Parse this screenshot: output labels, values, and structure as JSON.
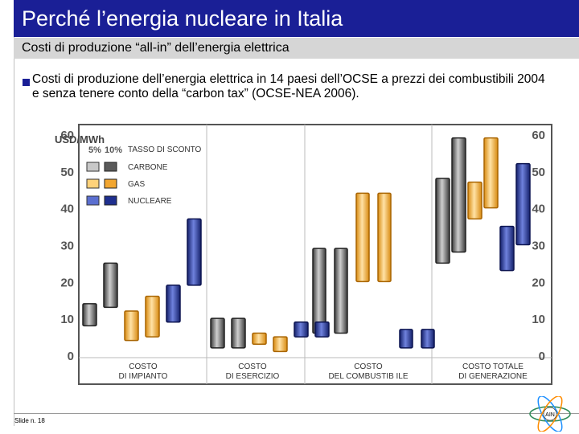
{
  "slide": {
    "title": "Perché l’energia nucleare in Italia",
    "subtitle": "Costi di produzione “all-in” dell’energia elettrica",
    "bullet": "Costi di produzione dell’energia elettrica in 14 paesi dell’OCSE a prezzi dei combustibili 2004 e senza tenere conto della “carbon tax” (OCSE-NEA 2006).",
    "footer": "Slide n. 18",
    "logo_text": "AIN"
  },
  "colors": {
    "title_bg": "#1a1f96",
    "coal": "#5a5a5a",
    "gas": "#f2a630",
    "nuclear": "#1f2f8f",
    "coal_light": "#c8c8c8",
    "gas_light": "#ffd27a",
    "nuclear_light": "#5b6fd0"
  },
  "chart_data": {
    "type": "bar",
    "chart_kind": "floating range bars",
    "ylabel": "USD/MWh",
    "ylim": [
      0,
      60
    ],
    "yticks": [
      0,
      10,
      20,
      30,
      40,
      50,
      60
    ],
    "legend": {
      "discount_labels": [
        "5%",
        "10%"
      ],
      "header": "TASSO DI SCONTO",
      "entries": [
        "CARBONE",
        "GAS",
        "NUCLEARE"
      ]
    },
    "categories": [
      {
        "line1": "COSTO",
        "line2": "DI IMPIANTO"
      },
      {
        "line1": "COSTO",
        "line2": "DI ESERCIZIO"
      },
      {
        "line1": "COSTO",
        "line2": "DEL COMBUSTIB ILE"
      },
      {
        "line1": "COSTO TOTALE",
        "line2": "DI GENERAZIONE"
      }
    ],
    "series": [
      {
        "name": "CARBONE",
        "discount": "5%",
        "ranges": [
          [
            8,
            14
          ],
          [
            2,
            10
          ],
          [
            6,
            29
          ],
          [
            25,
            48
          ]
        ]
      },
      {
        "name": "CARBONE",
        "discount": "10%",
        "ranges": [
          [
            13,
            25
          ],
          [
            2,
            10
          ],
          [
            6,
            29
          ],
          [
            28,
            59
          ]
        ]
      },
      {
        "name": "GAS",
        "discount": "5%",
        "ranges": [
          [
            4,
            12
          ],
          [
            3,
            6
          ],
          [
            20,
            44
          ],
          [
            37,
            47
          ]
        ]
      },
      {
        "name": "GAS",
        "discount": "10%",
        "ranges": [
          [
            5,
            16
          ],
          [
            1,
            5
          ],
          [
            20,
            44
          ],
          [
            40,
            59
          ]
        ]
      },
      {
        "name": "NUCLEARE",
        "discount": "5%",
        "ranges": [
          [
            9,
            19
          ],
          [
            5,
            9
          ],
          [
            2,
            7
          ],
          [
            23,
            35
          ]
        ]
      },
      {
        "name": "NUCLEARE",
        "discount": "10%",
        "ranges": [
          [
            19,
            37
          ],
          [
            5,
            9
          ],
          [
            2,
            7
          ],
          [
            30,
            52
          ]
        ]
      }
    ]
  }
}
